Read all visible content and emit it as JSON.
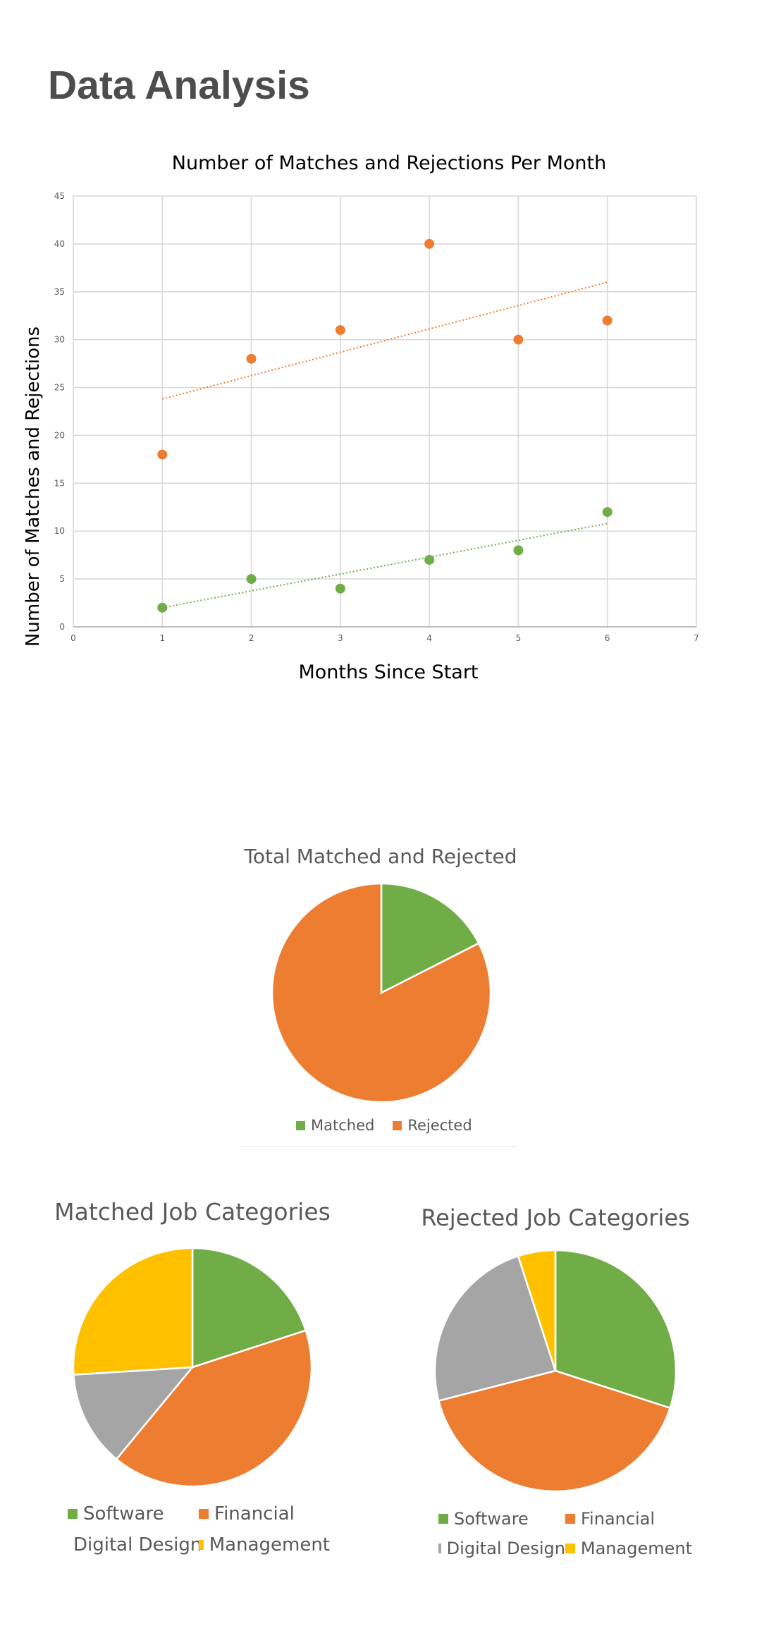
{
  "page": {
    "title": "Data Analysis"
  },
  "colors": {
    "matched": "#70ad47",
    "rejected": "#ed7d31",
    "digital_design": "#a5a5a5",
    "management": "#ffc000",
    "grid": "#d9d9d9",
    "axis_text": "#595959"
  },
  "chart_data": [
    {
      "id": "scatter",
      "type": "scatter",
      "title": "Number of Matches and Rejections Per Month",
      "xlabel": "Months Since Start",
      "ylabel": "Number of Matches and Rejections",
      "xlim": [
        0,
        7
      ],
      "ylim": [
        0,
        45
      ],
      "xticks": [
        "0",
        "1",
        "2",
        "3",
        "4",
        "5",
        "6",
        "7"
      ],
      "yticks": [
        "0",
        "5",
        "10",
        "15",
        "20",
        "25",
        "30",
        "35",
        "40",
        "45"
      ],
      "grid": true,
      "series": [
        {
          "key": "rejected",
          "x": [
            1,
            2,
            3,
            4,
            5,
            6
          ],
          "y": [
            18,
            28,
            31,
            40,
            30,
            32
          ],
          "trendline": {
            "x": [
              1,
              6
            ],
            "y": [
              23.8,
              36
            ]
          }
        },
        {
          "key": "matched",
          "x": [
            1,
            2,
            3,
            4,
            5,
            6
          ],
          "y": [
            2,
            5,
            4,
            7,
            8,
            12
          ],
          "trendline": {
            "x": [
              1,
              6
            ],
            "y": [
              2,
              10.8
            ]
          }
        }
      ]
    },
    {
      "id": "total",
      "type": "pie",
      "title": "Total Matched and Rejected",
      "slices": [
        {
          "label": "Matched",
          "value": 38,
          "color": "#70ad47"
        },
        {
          "label": "Rejected",
          "value": 179,
          "color": "#ed7d31"
        }
      ]
    },
    {
      "id": "matched_categories",
      "type": "pie",
      "title": "Matched Job Categories",
      "slices": [
        {
          "label": "Software",
          "value": 20,
          "color": "#70ad47"
        },
        {
          "label": "Financial",
          "value": 41,
          "color": "#ed7d31"
        },
        {
          "label": "Digital Design",
          "value": 13,
          "color": "#a5a5a5"
        },
        {
          "label": "Management",
          "value": 26,
          "color": "#ffc000"
        }
      ]
    },
    {
      "id": "rejected_categories",
      "type": "pie",
      "title": "Rejected Job Categories",
      "slices": [
        {
          "label": "Software",
          "value": 30,
          "color": "#70ad47"
        },
        {
          "label": "Financial",
          "value": 41,
          "color": "#ed7d31"
        },
        {
          "label": "Digital Design",
          "value": 24,
          "color": "#a5a5a5"
        },
        {
          "label": "Management",
          "value": 5,
          "color": "#ffc000"
        }
      ]
    }
  ]
}
